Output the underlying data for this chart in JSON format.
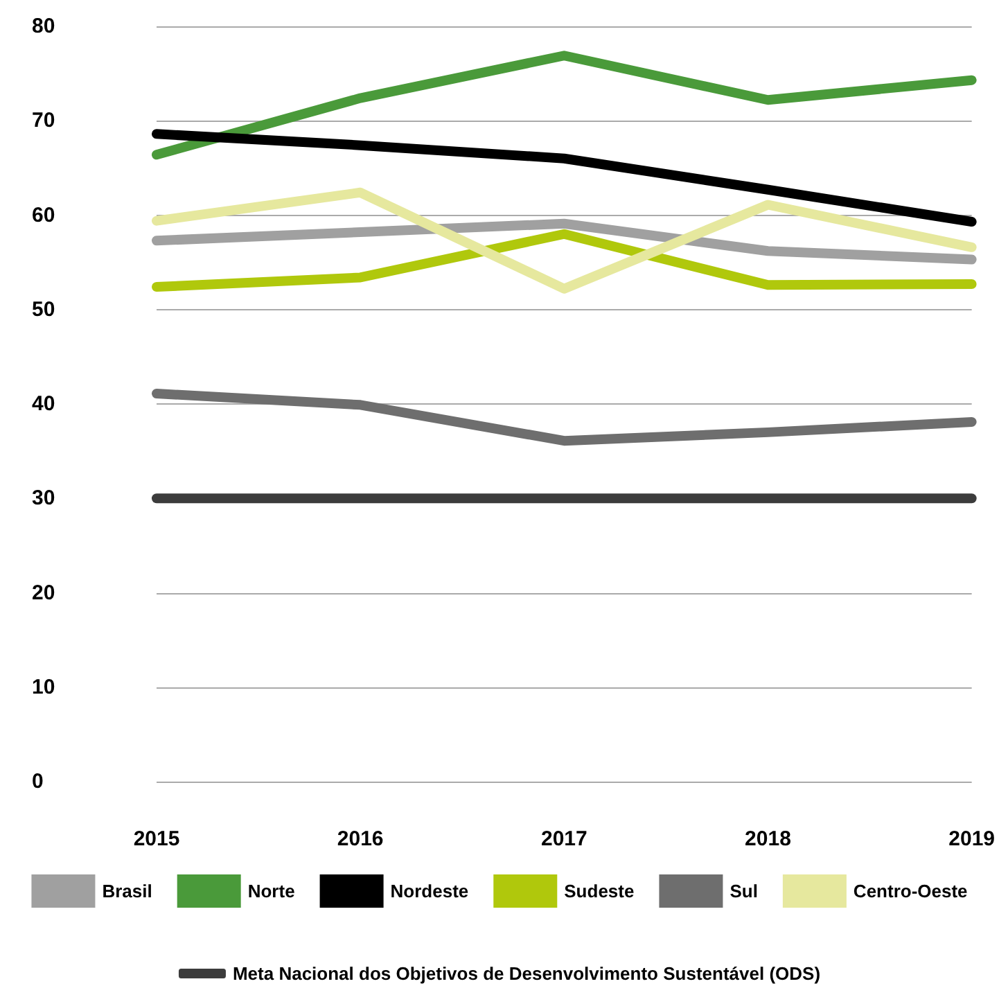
{
  "chart_data": {
    "type": "line",
    "categories": [
      "2015",
      "2016",
      "2017",
      "2018",
      "2019"
    ],
    "series": [
      {
        "name": "Brasil",
        "color": "#a0a0a0",
        "values": [
          57.3,
          58.2,
          59.1,
          56.2,
          55.3
        ]
      },
      {
        "name": "Norte",
        "color": "#4a9a3a",
        "values": [
          66.4,
          72.4,
          76.9,
          72.2,
          74.3
        ]
      },
      {
        "name": "Nordeste",
        "color": "#000000",
        "values": [
          68.6,
          67.4,
          66.0,
          62.7,
          59.3
        ]
      },
      {
        "name": "Sudeste",
        "color": "#b0c80c",
        "values": [
          52.4,
          53.4,
          58.0,
          52.6,
          52.7
        ]
      },
      {
        "name": "Sul",
        "color": "#6e6e6e",
        "values": [
          41.1,
          39.9,
          36.1,
          37.0,
          38.1
        ]
      },
      {
        "name": "Centro-Oeste",
        "color": "#e6e89e",
        "values": [
          59.4,
          62.4,
          52.2,
          61.1,
          56.6
        ]
      },
      {
        "name": "Meta Nacional dos Objetivos de Desenvolvimento Sustentável (ODS)",
        "color": "#3c3c3c",
        "values": [
          30,
          30,
          30,
          30,
          30
        ]
      }
    ],
    "ylim": [
      0,
      80
    ],
    "yticks": [
      0,
      10,
      20,
      30,
      40,
      50,
      60,
      70,
      80
    ],
    "grid": "y",
    "legend": "bottom",
    "marker": "none",
    "line_style": "solid"
  }
}
